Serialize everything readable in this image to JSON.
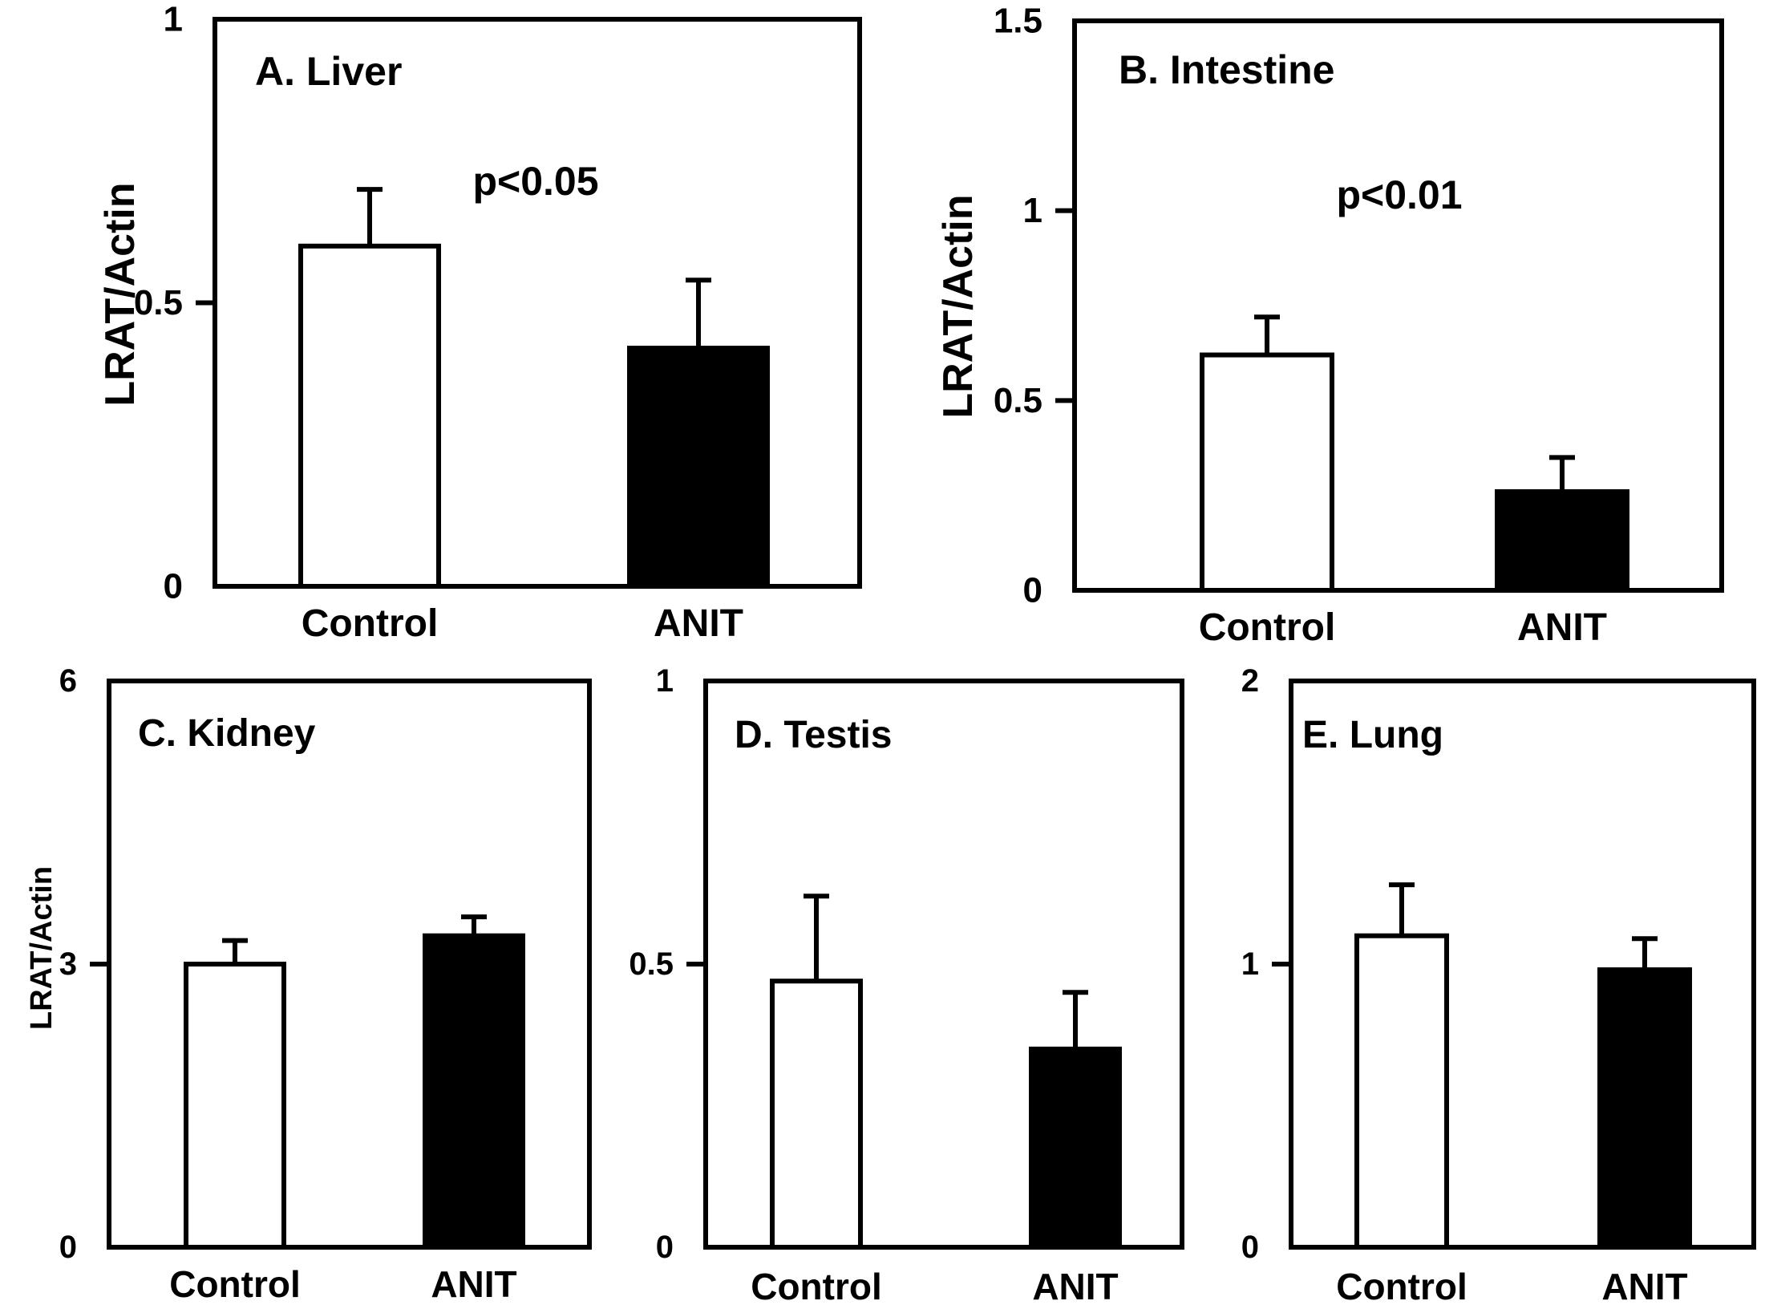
{
  "figure": {
    "y_axis_label": "LRAT/Actin",
    "category_labels": [
      "Control",
      "ANIT"
    ],
    "bar_colors": {
      "control": "#ffffff",
      "anit": "#000000"
    }
  },
  "chart_data": [
    {
      "type": "bar",
      "panel": "A",
      "title": "A. Liver",
      "categories": [
        "Control",
        "ANIT"
      ],
      "values": [
        0.6,
        0.42
      ],
      "errors": [
        0.1,
        0.12
      ],
      "ylabel": "LRAT/Actin",
      "ylim": [
        0,
        1
      ],
      "yticks": [
        0,
        0.5,
        1
      ],
      "ytick_labels": [
        "0",
        "0.5",
        "1"
      ],
      "annotation": "p<0.05"
    },
    {
      "type": "bar",
      "panel": "B",
      "title": "B. Intestine",
      "categories": [
        "Control",
        "ANIT"
      ],
      "values": [
        0.62,
        0.26
      ],
      "errors": [
        0.1,
        0.09
      ],
      "ylabel": "LRAT/Actin",
      "ylim": [
        0,
        1.5
      ],
      "yticks": [
        0,
        0.5,
        1,
        1.5
      ],
      "ytick_labels": [
        "0",
        "0.5",
        "1",
        "1.5"
      ],
      "annotation": "p<0.01"
    },
    {
      "type": "bar",
      "panel": "C",
      "title": "C. Kidney",
      "categories": [
        "Control",
        "ANIT"
      ],
      "values": [
        3.0,
        3.3
      ],
      "errors": [
        0.25,
        0.2
      ],
      "ylabel": "LRAT/Actin",
      "ylim": [
        0,
        6
      ],
      "yticks": [
        0,
        3,
        6
      ],
      "ytick_labels": [
        "0",
        "3",
        "6"
      ],
      "annotation": ""
    },
    {
      "type": "bar",
      "panel": "D",
      "title": "D. Testis",
      "categories": [
        "Control",
        "ANIT"
      ],
      "values": [
        0.47,
        0.35
      ],
      "errors": [
        0.15,
        0.1
      ],
      "ylabel": "",
      "ylim": [
        0,
        1
      ],
      "yticks": [
        0,
        0.5,
        1
      ],
      "ytick_labels": [
        "0",
        "0.5",
        "1"
      ],
      "annotation": ""
    },
    {
      "type": "bar",
      "panel": "E",
      "title": "E. Lung",
      "categories": [
        "Control",
        "ANIT"
      ],
      "values": [
        1.1,
        0.98
      ],
      "errors": [
        0.18,
        0.11
      ],
      "ylabel": "",
      "ylim": [
        0,
        2
      ],
      "yticks": [
        0,
        1,
        2
      ],
      "ytick_labels": [
        "0",
        "1",
        "2"
      ],
      "annotation": ""
    }
  ]
}
